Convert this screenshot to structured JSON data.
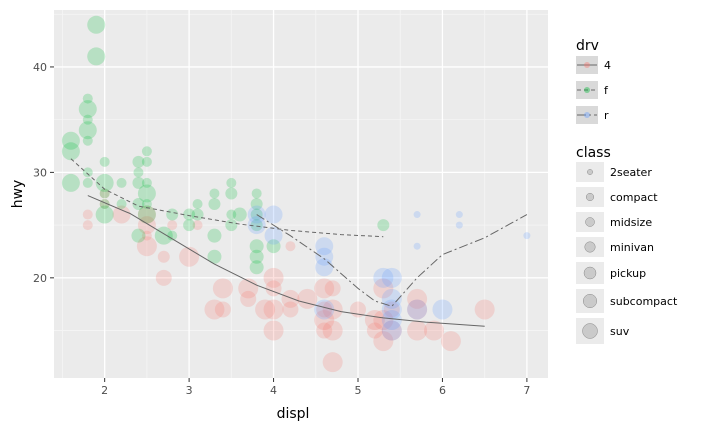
{
  "chart_data": {
    "type": "scatter",
    "xlabel": "displ",
    "ylabel": "hwy",
    "xlim": [
      1.4,
      7.25
    ],
    "ylim": [
      10.5,
      45.4
    ],
    "x_ticks": [
      2,
      3,
      4,
      5,
      6,
      7
    ],
    "y_ticks": [
      20,
      30,
      40
    ],
    "grid": true,
    "legend_placement": "right",
    "colors": {
      "4": "#f8766d",
      "f": "#00ba38",
      "r": "#619cff"
    },
    "legend": {
      "drv": {
        "title": "drv",
        "entries": [
          "4",
          "f",
          "r"
        ]
      },
      "class": {
        "title": "class",
        "entries": [
          "2seater",
          "compact",
          "midsize",
          "minivan",
          "pickup",
          "subcompact",
          "suv"
        ]
      }
    },
    "series": [
      {
        "name": "4",
        "points": [
          {
            "x": 1.8,
            "y": 26,
            "class": "compact"
          },
          {
            "x": 1.8,
            "y": 25,
            "class": "compact"
          },
          {
            "x": 2.0,
            "y": 28,
            "class": "compact"
          },
          {
            "x": 2.0,
            "y": 27,
            "class": "compact"
          },
          {
            "x": 2.2,
            "y": 26,
            "class": "subcompact"
          },
          {
            "x": 2.5,
            "y": 26,
            "class": "subcompact"
          },
          {
            "x": 2.5,
            "y": 25,
            "class": "subcompact"
          },
          {
            "x": 2.5,
            "y": 24,
            "class": "compact"
          },
          {
            "x": 2.5,
            "y": 23,
            "class": "suv"
          },
          {
            "x": 2.7,
            "y": 22,
            "class": "midsize"
          },
          {
            "x": 2.7,
            "y": 20,
            "class": "pickup"
          },
          {
            "x": 2.8,
            "y": 25,
            "class": "compact"
          },
          {
            "x": 3.0,
            "y": 22,
            "class": "suv"
          },
          {
            "x": 3.1,
            "y": 25,
            "class": "compact"
          },
          {
            "x": 3.3,
            "y": 17,
            "class": "suv"
          },
          {
            "x": 3.4,
            "y": 19,
            "class": "suv"
          },
          {
            "x": 3.4,
            "y": 17,
            "class": "pickup"
          },
          {
            "x": 3.7,
            "y": 19,
            "class": "suv"
          },
          {
            "x": 3.7,
            "y": 18,
            "class": "pickup"
          },
          {
            "x": 3.9,
            "y": 17,
            "class": "suv"
          },
          {
            "x": 4.0,
            "y": 20,
            "class": "suv"
          },
          {
            "x": 4.0,
            "y": 19,
            "class": "pickup"
          },
          {
            "x": 4.0,
            "y": 17,
            "class": "suv"
          },
          {
            "x": 4.0,
            "y": 15,
            "class": "suv"
          },
          {
            "x": 4.2,
            "y": 18,
            "class": "subcompact"
          },
          {
            "x": 4.2,
            "y": 23,
            "class": "compact"
          },
          {
            "x": 4.2,
            "y": 17,
            "class": "pickup"
          },
          {
            "x": 4.4,
            "y": 18,
            "class": "suv"
          },
          {
            "x": 4.6,
            "y": 19,
            "class": "suv"
          },
          {
            "x": 4.6,
            "y": 17,
            "class": "pickup"
          },
          {
            "x": 4.6,
            "y": 16,
            "class": "suv"
          },
          {
            "x": 4.6,
            "y": 15,
            "class": "pickup"
          },
          {
            "x": 4.7,
            "y": 19,
            "class": "pickup"
          },
          {
            "x": 4.7,
            "y": 17,
            "class": "suv"
          },
          {
            "x": 4.7,
            "y": 15,
            "class": "suv"
          },
          {
            "x": 4.7,
            "y": 12,
            "class": "suv"
          },
          {
            "x": 5.0,
            "y": 17,
            "class": "pickup"
          },
          {
            "x": 5.2,
            "y": 16,
            "class": "suv"
          },
          {
            "x": 5.2,
            "y": 15,
            "class": "pickup"
          },
          {
            "x": 5.3,
            "y": 19,
            "class": "suv"
          },
          {
            "x": 5.3,
            "y": 16,
            "class": "suv"
          },
          {
            "x": 5.3,
            "y": 14,
            "class": "suv"
          },
          {
            "x": 5.4,
            "y": 17,
            "class": "pickup"
          },
          {
            "x": 5.4,
            "y": 15,
            "class": "suv"
          },
          {
            "x": 5.7,
            "y": 18,
            "class": "suv"
          },
          {
            "x": 5.7,
            "y": 17,
            "class": "suv"
          },
          {
            "x": 5.7,
            "y": 15,
            "class": "suv"
          },
          {
            "x": 5.9,
            "y": 15,
            "class": "suv"
          },
          {
            "x": 6.1,
            "y": 14,
            "class": "suv"
          },
          {
            "x": 6.5,
            "y": 17,
            "class": "suv"
          }
        ],
        "smooth": [
          {
            "x": 1.8,
            "y": 27.8
          },
          {
            "x": 2.3,
            "y": 26.1
          },
          {
            "x": 2.8,
            "y": 23.7
          },
          {
            "x": 3.3,
            "y": 21.3
          },
          {
            "x": 3.8,
            "y": 19.3
          },
          {
            "x": 4.3,
            "y": 17.8
          },
          {
            "x": 4.8,
            "y": 16.8
          },
          {
            "x": 5.3,
            "y": 16.2
          },
          {
            "x": 5.8,
            "y": 15.8
          },
          {
            "x": 6.5,
            "y": 15.4
          }
        ]
      },
      {
        "name": "f",
        "points": [
          {
            "x": 1.6,
            "y": 33,
            "class": "subcompact"
          },
          {
            "x": 1.6,
            "y": 32,
            "class": "subcompact"
          },
          {
            "x": 1.6,
            "y": 29,
            "class": "subcompact"
          },
          {
            "x": 1.8,
            "y": 37,
            "class": "compact"
          },
          {
            "x": 1.8,
            "y": 36,
            "class": "subcompact"
          },
          {
            "x": 1.8,
            "y": 35,
            "class": "compact"
          },
          {
            "x": 1.8,
            "y": 34,
            "class": "subcompact"
          },
          {
            "x": 1.8,
            "y": 33,
            "class": "compact"
          },
          {
            "x": 1.8,
            "y": 30,
            "class": "compact"
          },
          {
            "x": 1.8,
            "y": 29,
            "class": "compact"
          },
          {
            "x": 1.9,
            "y": 44,
            "class": "subcompact"
          },
          {
            "x": 1.9,
            "y": 41,
            "class": "subcompact"
          },
          {
            "x": 2.0,
            "y": 31,
            "class": "compact"
          },
          {
            "x": 2.0,
            "y": 29,
            "class": "subcompact"
          },
          {
            "x": 2.0,
            "y": 28,
            "class": "compact"
          },
          {
            "x": 2.0,
            "y": 27,
            "class": "compact"
          },
          {
            "x": 2.0,
            "y": 26,
            "class": "subcompact"
          },
          {
            "x": 2.2,
            "y": 29,
            "class": "compact"
          },
          {
            "x": 2.2,
            "y": 27,
            "class": "compact"
          },
          {
            "x": 2.4,
            "y": 31,
            "class": "midsize"
          },
          {
            "x": 2.4,
            "y": 30,
            "class": "compact"
          },
          {
            "x": 2.4,
            "y": 29,
            "class": "midsize"
          },
          {
            "x": 2.4,
            "y": 27,
            "class": "midsize"
          },
          {
            "x": 2.4,
            "y": 24,
            "class": "minivan"
          },
          {
            "x": 2.5,
            "y": 32,
            "class": "compact"
          },
          {
            "x": 2.5,
            "y": 31,
            "class": "compact"
          },
          {
            "x": 2.5,
            "y": 29,
            "class": "compact"
          },
          {
            "x": 2.5,
            "y": 28,
            "class": "subcompact"
          },
          {
            "x": 2.5,
            "y": 27,
            "class": "compact"
          },
          {
            "x": 2.5,
            "y": 26,
            "class": "subcompact"
          },
          {
            "x": 2.7,
            "y": 24,
            "class": "subcompact"
          },
          {
            "x": 2.8,
            "y": 26,
            "class": "midsize"
          },
          {
            "x": 2.8,
            "y": 24,
            "class": "compact"
          },
          {
            "x": 3.0,
            "y": 26,
            "class": "midsize"
          },
          {
            "x": 3.0,
            "y": 25,
            "class": "midsize"
          },
          {
            "x": 3.1,
            "y": 27,
            "class": "compact"
          },
          {
            "x": 3.1,
            "y": 26,
            "class": "midsize"
          },
          {
            "x": 3.3,
            "y": 28,
            "class": "compact"
          },
          {
            "x": 3.3,
            "y": 27,
            "class": "midsize"
          },
          {
            "x": 3.3,
            "y": 24,
            "class": "minivan"
          },
          {
            "x": 3.3,
            "y": 22,
            "class": "minivan"
          },
          {
            "x": 3.5,
            "y": 29,
            "class": "compact"
          },
          {
            "x": 3.5,
            "y": 28,
            "class": "midsize"
          },
          {
            "x": 3.5,
            "y": 26,
            "class": "compact"
          },
          {
            "x": 3.5,
            "y": 25,
            "class": "midsize"
          },
          {
            "x": 3.6,
            "y": 26,
            "class": "minivan"
          },
          {
            "x": 3.8,
            "y": 28,
            "class": "compact"
          },
          {
            "x": 3.8,
            "y": 27,
            "class": "midsize"
          },
          {
            "x": 3.8,
            "y": 26,
            "class": "midsize"
          },
          {
            "x": 3.8,
            "y": 25,
            "class": "midsize"
          },
          {
            "x": 3.8,
            "y": 23,
            "class": "minivan"
          },
          {
            "x": 3.8,
            "y": 22,
            "class": "minivan"
          },
          {
            "x": 3.8,
            "y": 21,
            "class": "minivan"
          },
          {
            "x": 4.0,
            "y": 23,
            "class": "minivan"
          },
          {
            "x": 5.3,
            "y": 25,
            "class": "midsize"
          }
        ],
        "smooth": [
          {
            "x": 1.6,
            "y": 31.3
          },
          {
            "x": 2.0,
            "y": 28.4
          },
          {
            "x": 2.4,
            "y": 26.8
          },
          {
            "x": 3.0,
            "y": 25.9
          },
          {
            "x": 3.6,
            "y": 25.1
          },
          {
            "x": 4.2,
            "y": 24.5
          },
          {
            "x": 4.8,
            "y": 24.1
          },
          {
            "x": 5.3,
            "y": 23.9
          }
        ]
      },
      {
        "name": "r",
        "points": [
          {
            "x": 3.8,
            "y": 26,
            "class": "subcompact"
          },
          {
            "x": 3.8,
            "y": 25,
            "class": "subcompact"
          },
          {
            "x": 4.0,
            "y": 26,
            "class": "subcompact"
          },
          {
            "x": 4.0,
            "y": 24,
            "class": "subcompact"
          },
          {
            "x": 4.6,
            "y": 23,
            "class": "subcompact"
          },
          {
            "x": 4.6,
            "y": 22,
            "class": "subcompact"
          },
          {
            "x": 4.6,
            "y": 21,
            "class": "subcompact"
          },
          {
            "x": 4.6,
            "y": 17,
            "class": "suv"
          },
          {
            "x": 5.3,
            "y": 20,
            "class": "suv"
          },
          {
            "x": 5.4,
            "y": 20,
            "class": "suv"
          },
          {
            "x": 5.4,
            "y": 18,
            "class": "suv"
          },
          {
            "x": 5.4,
            "y": 17,
            "class": "suv"
          },
          {
            "x": 5.4,
            "y": 16,
            "class": "suv"
          },
          {
            "x": 5.4,
            "y": 15,
            "class": "suv"
          },
          {
            "x": 5.7,
            "y": 26,
            "class": "2seater"
          },
          {
            "x": 5.7,
            "y": 23,
            "class": "2seater"
          },
          {
            "x": 5.7,
            "y": 17,
            "class": "suv"
          },
          {
            "x": 6.0,
            "y": 17,
            "class": "suv"
          },
          {
            "x": 6.2,
            "y": 26,
            "class": "2seater"
          },
          {
            "x": 6.2,
            "y": 25,
            "class": "2seater"
          },
          {
            "x": 7.0,
            "y": 24,
            "class": "2seater"
          }
        ],
        "smooth": [
          {
            "x": 3.8,
            "y": 26.0
          },
          {
            "x": 4.2,
            "y": 24.0
          },
          {
            "x": 4.6,
            "y": 21.8
          },
          {
            "x": 5.0,
            "y": 19.0
          },
          {
            "x": 5.2,
            "y": 17.8
          },
          {
            "x": 5.4,
            "y": 17.3
          },
          {
            "x": 5.7,
            "y": 20.0
          },
          {
            "x": 6.0,
            "y": 22.2
          },
          {
            "x": 6.5,
            "y": 23.8
          },
          {
            "x": 7.0,
            "y": 26.0
          }
        ]
      }
    ]
  }
}
